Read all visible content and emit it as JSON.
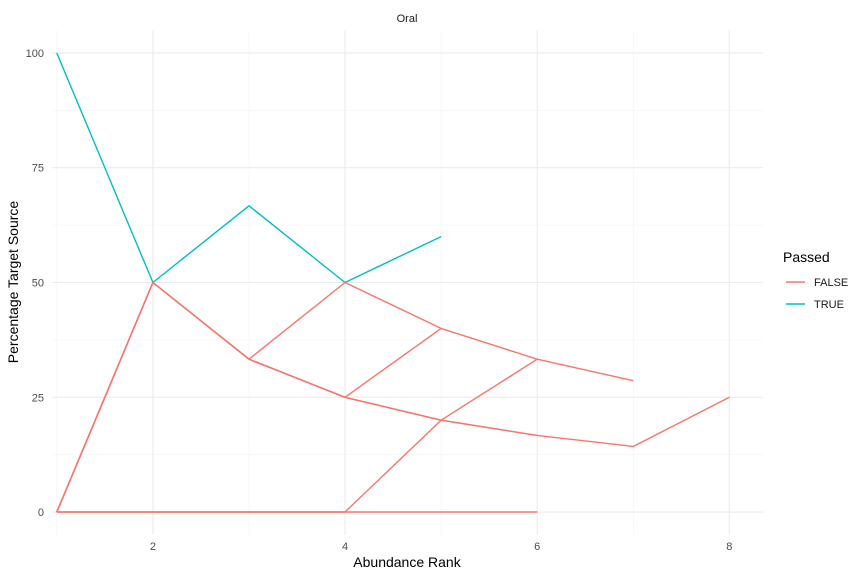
{
  "chart_data": {
    "type": "line",
    "title": "Oral",
    "xlabel": "Abundance Rank",
    "ylabel": "Percentage Target Source",
    "xlim": [
      0.95,
      8.35
    ],
    "ylim": [
      -5,
      105
    ],
    "x_ticks": [
      2,
      4,
      6,
      8
    ],
    "y_ticks": [
      0,
      25,
      50,
      75,
      100
    ],
    "grid": true,
    "legend": {
      "title": "Passed",
      "position": "right",
      "entries": [
        {
          "label": "FALSE",
          "color": "#F8766D"
        },
        {
          "label": "TRUE",
          "color": "#00BFC4"
        }
      ]
    },
    "series": [
      {
        "group": "TRUE",
        "color": "#00BFC4",
        "x": [
          1,
          2,
          3,
          4,
          5
        ],
        "y": [
          100,
          50,
          66.7,
          50,
          60
        ]
      },
      {
        "group": "FALSE",
        "color": "#F8766D",
        "x": [
          1,
          2,
          3,
          4,
          5,
          6,
          7
        ],
        "y": [
          0,
          50,
          33.3,
          50,
          40,
          33.3,
          28.6
        ]
      },
      {
        "group": "FALSE",
        "color": "#F8766D",
        "x": [
          1,
          2,
          3,
          4,
          5,
          6,
          7,
          8
        ],
        "y": [
          0,
          50,
          33.3,
          25,
          20,
          16.7,
          14.3,
          25
        ]
      },
      {
        "group": "FALSE",
        "color": "#F8766D",
        "x": [
          1,
          2,
          3,
          4,
          5
        ],
        "y": [
          0,
          50,
          33.3,
          25,
          40
        ]
      },
      {
        "group": "FALSE",
        "color": "#F8766D",
        "x": [
          1,
          2,
          3,
          4,
          5,
          6
        ],
        "y": [
          0,
          50,
          33.3,
          25,
          20,
          33.3
        ]
      },
      {
        "group": "FALSE",
        "color": "#F8766D",
        "x": [
          1,
          2,
          3,
          4,
          5,
          6
        ],
        "y": [
          0,
          0,
          0,
          0,
          20,
          16.7
        ]
      },
      {
        "group": "FALSE",
        "color": "#F8766D",
        "x": [
          1,
          2,
          3,
          4,
          5,
          6
        ],
        "y": [
          0,
          0,
          0,
          0,
          0,
          0
        ]
      }
    ]
  }
}
